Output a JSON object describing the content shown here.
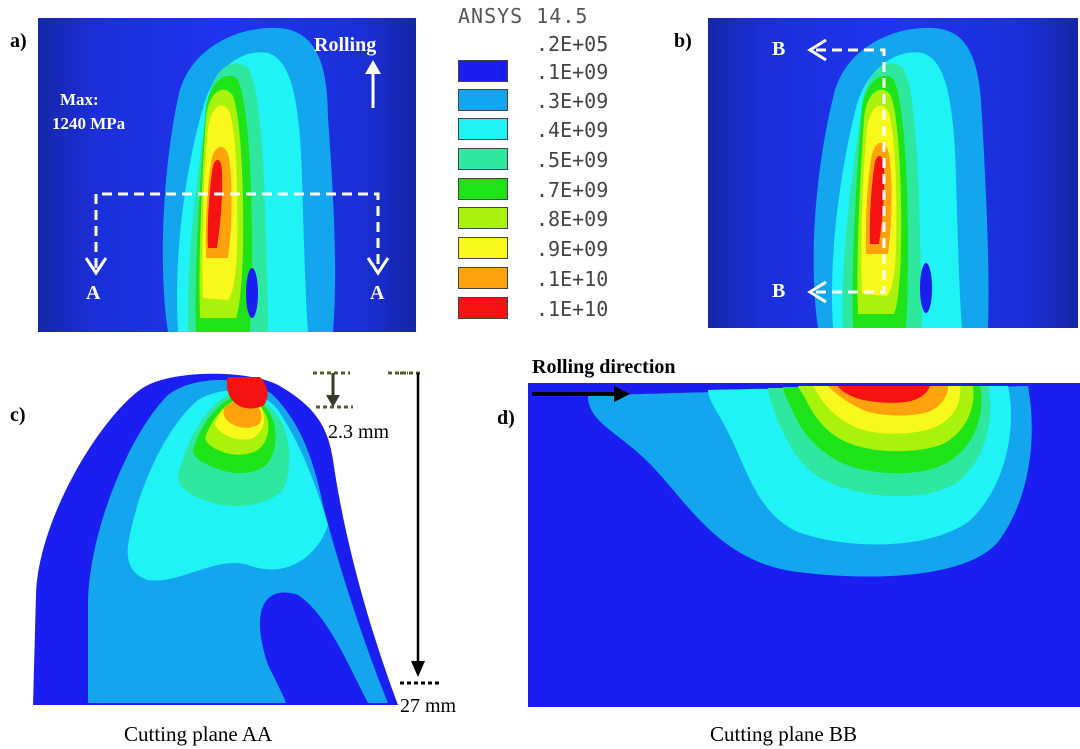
{
  "panels": {
    "a": {
      "label": "a)",
      "max_label": "Max:",
      "max_value": "1240 MPa",
      "rolling_label": "Rolling",
      "section_left": "A",
      "section_right": "A"
    },
    "b": {
      "label": "b)",
      "section_top": "B",
      "section_bottom": "B"
    },
    "c": {
      "label": "c)",
      "depth_small": "2.3 mm",
      "depth_large": "27 mm",
      "caption": "Cutting plane AA"
    },
    "d": {
      "label": "d)",
      "rolling_direction": "Rolling direction",
      "caption": "Cutting plane BB"
    }
  },
  "legend": {
    "title": "ANSYS 14.5",
    "top_value": ".2E+05",
    "entries": [
      {
        "color": "#1a1ef0",
        "value": ".1E+09"
      },
      {
        "color": "#13a6ee",
        "value": ".3E+09"
      },
      {
        "color": "#1ff3f5",
        "value": ".4E+09"
      },
      {
        "color": "#2ee8a0",
        "value": ".5E+09"
      },
      {
        "color": "#1de318",
        "value": ".7E+09"
      },
      {
        "color": "#a8f20c",
        "value": ".8E+09"
      },
      {
        "color": "#f8f81a",
        "value": ".9E+09"
      },
      {
        "color": "#ffa20c",
        "value": ".1E+10"
      },
      {
        "color": "#f41212",
        "value": ".1E+10"
      }
    ]
  }
}
